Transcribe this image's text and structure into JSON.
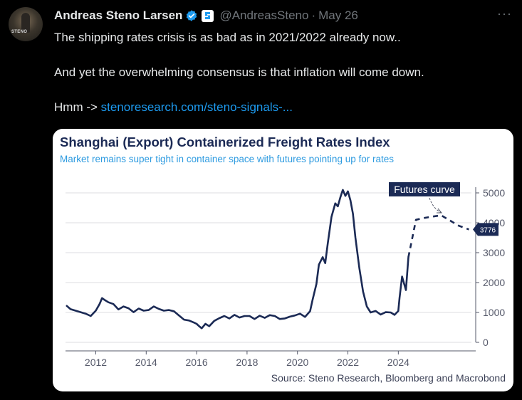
{
  "tweet": {
    "author_name": "Andreas Steno Larsen",
    "handle": "@AndreasSteno",
    "date": "May 26",
    "separator": "·",
    "more_label": "···",
    "avatar_caption": "STENO",
    "lines": [
      "The shipping rates crisis is as bad as in 2021/2022 already now..",
      "And yet the overwhelming consensus is that inflation will come down."
    ],
    "link_prefix": "Hmm -> ",
    "link_text": "stenoresearch.com/steno-signals-..."
  },
  "colors": {
    "background": "#000000",
    "link": "#1d9bf0",
    "verified": "#1d9bf0",
    "chart_line": "#1b2a55",
    "chart_title": "#1b2a55",
    "chart_subtitle": "#2e9be0"
  },
  "chart_data": {
    "type": "line",
    "title": "Shanghai (Export) Containerized Freight Rates Index",
    "subtitle": "Market remains super tight in container space with futures pointing up for rates",
    "source": "Source: Steno Research, Bloomberg and Macrobond",
    "x_ticks": [
      "2012",
      "2014",
      "2016",
      "2018",
      "2020",
      "2022",
      "2024"
    ],
    "y_ticks": [
      "0",
      "1000",
      "2000",
      "3000",
      "4000",
      "5000"
    ],
    "ylim": [
      0,
      5000
    ],
    "xlim": [
      2010.8,
      2026.9
    ],
    "y_axis_side": "right",
    "grid": true,
    "annotation": "Futures curve",
    "end_label": "3776",
    "series": [
      {
        "style": "solid",
        "x": [
          2010.85,
          2011.0,
          2011.2,
          2011.4,
          2011.6,
          2011.8,
          2012.0,
          2012.15,
          2012.25,
          2012.35,
          2012.5,
          2012.7,
          2012.9,
          2013.1,
          2013.3,
          2013.5,
          2013.7,
          2013.9,
          2014.1,
          2014.3,
          2014.5,
          2014.7,
          2014.9,
          2015.1,
          2015.3,
          2015.5,
          2015.7,
          2015.9,
          2016.0,
          2016.1,
          2016.2,
          2016.35,
          2016.5,
          2016.7,
          2016.9,
          2017.1,
          2017.3,
          2017.5,
          2017.7,
          2017.9,
          2018.1,
          2018.3,
          2018.5,
          2018.7,
          2018.9,
          2019.1,
          2019.3,
          2019.5,
          2019.7,
          2019.9,
          2020.1,
          2020.3,
          2020.5,
          2020.6,
          2020.75,
          2020.85,
          2021.0,
          2021.1,
          2021.2,
          2021.35,
          2021.5,
          2021.6,
          2021.7,
          2021.8,
          2021.9,
          2022.0,
          2022.1,
          2022.2,
          2022.3,
          2022.45,
          2022.6,
          2022.75,
          2022.9,
          2023.1,
          2023.3,
          2023.5,
          2023.7,
          2023.85,
          2024.0,
          2024.05,
          2024.15,
          2024.3,
          2024.4
        ],
        "values": [
          1220,
          1110,
          1060,
          1010,
          960,
          880,
          1060,
          1280,
          1480,
          1420,
          1340,
          1280,
          1100,
          1200,
          1140,
          1010,
          1130,
          1060,
          1080,
          1200,
          1120,
          1060,
          1080,
          1040,
          900,
          760,
          730,
          660,
          620,
          540,
          470,
          620,
          540,
          720,
          810,
          880,
          800,
          920,
          830,
          880,
          880,
          780,
          890,
          820,
          910,
          880,
          780,
          800,
          860,
          900,
          960,
          850,
          1040,
          1430,
          1950,
          2600,
          2850,
          2650,
          3300,
          4200,
          4650,
          4550,
          4850,
          5100,
          4900,
          5050,
          4750,
          4300,
          3500,
          2500,
          1700,
          1200,
          1000,
          1050,
          930,
          1010,
          1000,
          920,
          1050,
          1500,
          2200,
          1750,
          2850
        ]
      },
      {
        "name": "Futures curve",
        "style": "dashed",
        "x": [
          2024.4,
          2024.7,
          2024.95,
          2025.3,
          2025.7,
          2026.0,
          2026.4,
          2026.8
        ],
        "values": [
          2850,
          4100,
          4150,
          4200,
          4250,
          4100,
          3900,
          3776
        ]
      }
    ]
  }
}
